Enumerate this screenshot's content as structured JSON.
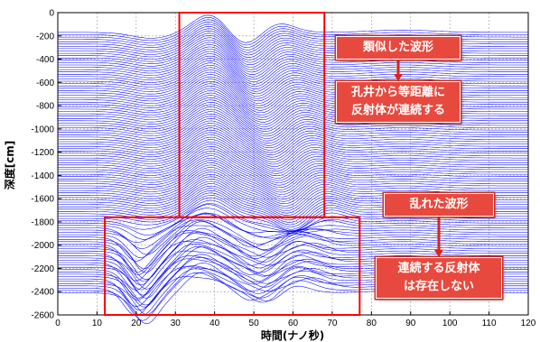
{
  "chart_data": {
    "type": "line",
    "xlabel": "時間(ナノ秒)",
    "ylabel": "深度[cm]",
    "xlim": [
      0,
      120
    ],
    "ylim": [
      -2600,
      0
    ],
    "x_ticks": [
      0,
      10,
      20,
      30,
      40,
      50,
      60,
      70,
      80,
      90,
      100,
      110,
      120
    ],
    "y_ticks": [
      0,
      -200,
      -400,
      -600,
      -800,
      -1000,
      -1200,
      -1400,
      -1600,
      -1800,
      -2000,
      -2200,
      -2400,
      -2600
    ],
    "grid": true,
    "series_color": "#0000ff",
    "trace_depth_range": [
      -2420,
      -170
    ],
    "trace_spacing": 20,
    "regions": [
      {
        "x_range": [
          31,
          68
        ],
        "y_range": [
          -1760,
          0
        ],
        "color": "#ff0000"
      },
      {
        "x_range": [
          12,
          77
        ],
        "y_range": [
          -2600,
          -1760
        ],
        "color": "#ff0000"
      }
    ],
    "annotations": [
      {
        "text": "類似した波形"
      },
      {
        "text": "孔井から等距離に\n反射体が連続する"
      },
      {
        "text": "乱れた波形"
      },
      {
        "text": "連続する反射体\nは存在しない"
      }
    ]
  }
}
